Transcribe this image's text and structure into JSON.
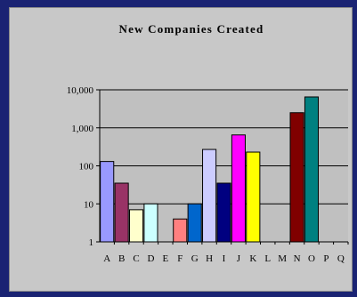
{
  "chart_data": {
    "type": "bar",
    "title": "New Companies Created",
    "categories": [
      "A",
      "B",
      "C",
      "D",
      "E",
      "F",
      "G",
      "H",
      "I",
      "J",
      "K",
      "L",
      "M",
      "N",
      "O",
      "P",
      "Q"
    ],
    "values": [
      130,
      35,
      7,
      10,
      null,
      4,
      10,
      270,
      35,
      650,
      230,
      null,
      null,
      2500,
      6500,
      null,
      null
    ],
    "colors": [
      "#9999ff",
      "#993366",
      "#ffffcc",
      "#ccffff",
      "#660066",
      "#ff8080",
      "#0066cc",
      "#ccccff",
      "#000080",
      "#ff00ff",
      "#ffff00",
      "#00ffff",
      "#800080",
      "#800000",
      "#008080",
      "#0000ff",
      "#ffffff"
    ],
    "yscale": "log",
    "ylim": [
      1,
      10000
    ],
    "yticks": [
      1,
      10,
      100,
      1000,
      10000
    ],
    "ytick_labels": [
      "1",
      "10",
      "100",
      "1,000",
      "10,000"
    ],
    "grid": true,
    "plot_background": "#c0c0c0",
    "xlabel": "",
    "ylabel": ""
  }
}
